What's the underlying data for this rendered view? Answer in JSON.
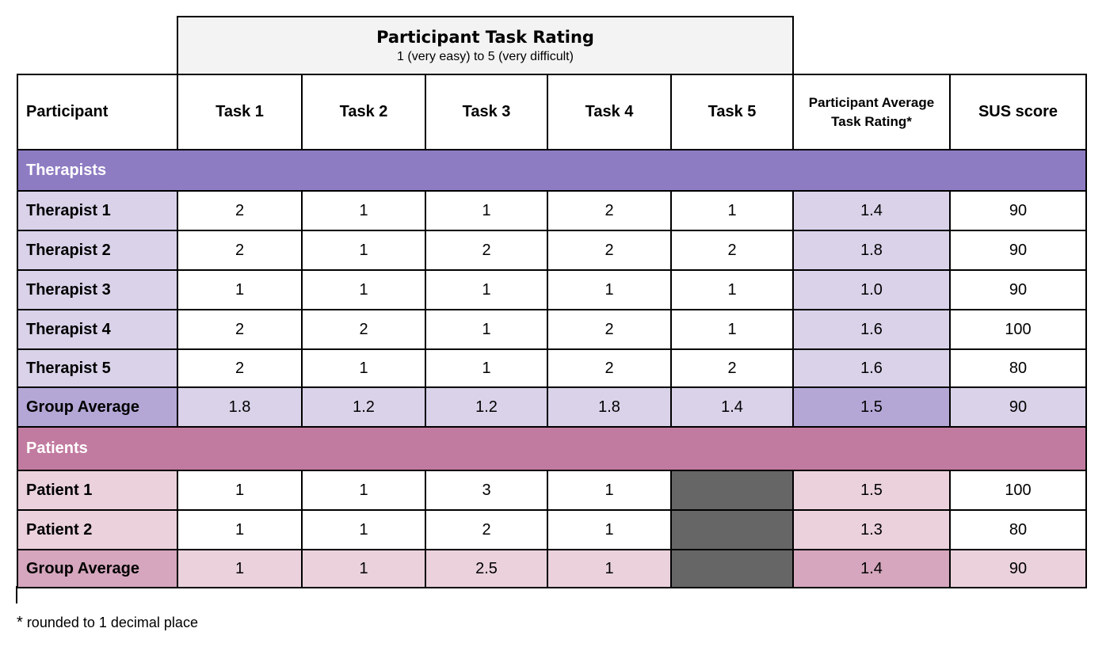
{
  "header": {
    "title": "Participant Task Rating",
    "subtitle": "1 (very easy) to 5 (very difficult)"
  },
  "columns": [
    "Participant",
    "Task 1",
    "Task 2",
    "Task 3",
    "Task 4",
    "Task 5",
    "Participant Average Task Rating*",
    "SUS score"
  ],
  "sections": [
    {
      "label": "Therapists",
      "color": "#8e7cc3",
      "light": "#d9d2e9",
      "dark": "#b4a7d6",
      "rows": [
        {
          "label": "Therapist 1",
          "values": [
            "2",
            "1",
            "1",
            "2",
            "1"
          ],
          "avg": "1.4",
          "sus": "90"
        },
        {
          "label": "Therapist 2",
          "values": [
            "2",
            "1",
            "2",
            "2",
            "2"
          ],
          "avg": "1.8",
          "sus": "90"
        },
        {
          "label": "Therapist 3",
          "values": [
            "1",
            "1",
            "1",
            "1",
            "1"
          ],
          "avg": "1.0",
          "sus": "90"
        },
        {
          "label": "Therapist 4",
          "values": [
            "2",
            "2",
            "1",
            "2",
            "1"
          ],
          "avg": "1.6",
          "sus": "100"
        },
        {
          "label": "Therapist 5",
          "values": [
            "2",
            "1",
            "1",
            "2",
            "2"
          ],
          "avg": "1.6",
          "sus": "80"
        }
      ],
      "group": {
        "label": "Group Average",
        "values": [
          "1.8",
          "1.2",
          "1.2",
          "1.8",
          "1.4"
        ],
        "avg": "1.5",
        "sus": "90"
      }
    },
    {
      "label": "Patients",
      "color": "#c27ba0",
      "light": "#ead1dc",
      "dark": "#d5a6bd",
      "rows": [
        {
          "label": "Patient 1",
          "values": [
            "1",
            "1",
            "3",
            "1",
            null
          ],
          "avg": "1.5",
          "sus": "100"
        },
        {
          "label": "Patient 2",
          "values": [
            "1",
            "1",
            "2",
            "1",
            null
          ],
          "avg": "1.3",
          "sus": "80"
        }
      ],
      "group": {
        "label": "Group Average",
        "values": [
          "1",
          "1",
          "2.5",
          "1",
          null
        ],
        "avg": "1.4",
        "sus": "90"
      }
    }
  ],
  "na_color": "#666666",
  "footnote": {
    "star": "*",
    "text": "rounded to 1 decimal place"
  }
}
